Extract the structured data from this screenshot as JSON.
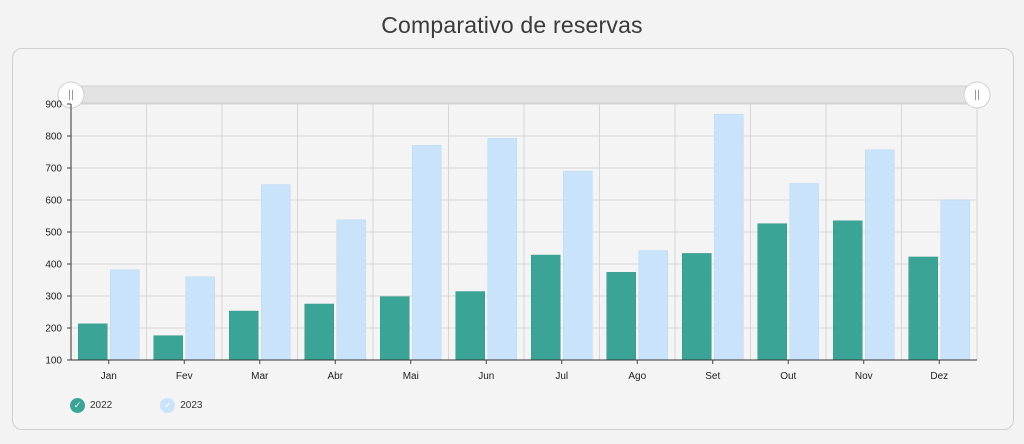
{
  "title": "Comparativo de reservas",
  "colors": {
    "s2022": "#3aa597",
    "s2023": "#c9e3fa",
    "grid": "#d6d6d6",
    "scroll": "#e3e3e3"
  },
  "legend": [
    {
      "label": "2022",
      "icon": "check-icon",
      "color": "#3aa597"
    },
    {
      "label": "2023",
      "icon": "check-icon",
      "color": "#c9e3fa"
    }
  ],
  "chart_data": {
    "type": "bar",
    "categories": [
      "Jan",
      "Fev",
      "Mar",
      "Abr",
      "Mai",
      "Jun",
      "Jul",
      "Ago",
      "Set",
      "Out",
      "Nov",
      "Dez"
    ],
    "series": [
      {
        "name": "2022",
        "values": [
          213,
          176,
          253,
          275,
          298,
          314,
          428,
          374,
          433,
          526,
          535,
          422
        ]
      },
      {
        "name": "2023",
        "values": [
          382,
          360,
          648,
          538,
          771,
          793,
          690,
          442,
          868,
          652,
          757,
          600
        ]
      }
    ],
    "yticks": [
      100,
      200,
      300,
      400,
      500,
      600,
      700,
      800,
      900
    ],
    "ylim": [
      100,
      900
    ],
    "grid": true,
    "legend_position": "bottom-left"
  }
}
